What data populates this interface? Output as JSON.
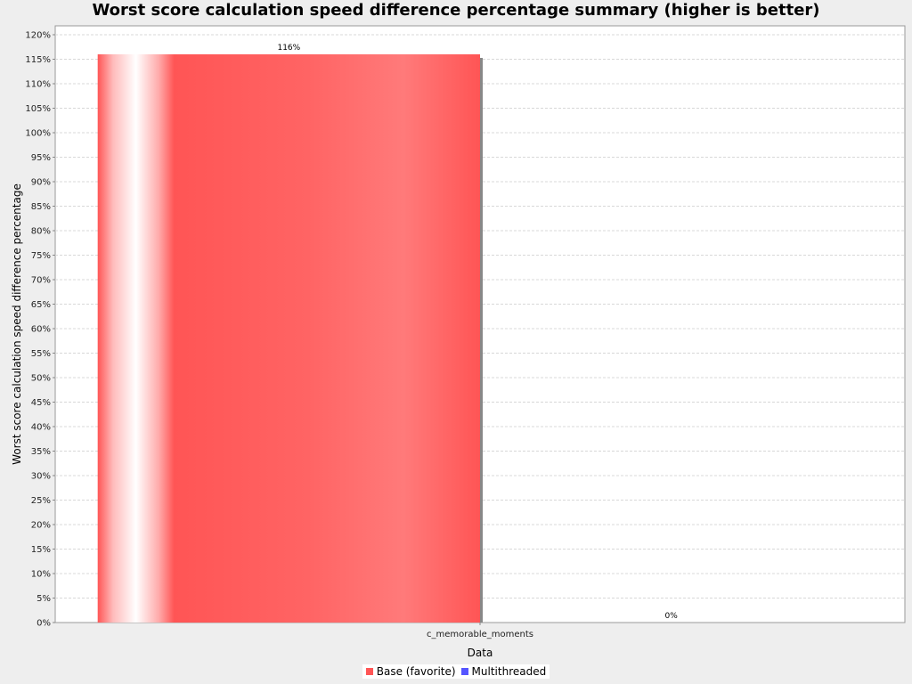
{
  "chart_data": {
    "type": "bar",
    "title": "Worst score calculation speed difference percentage summary (higher is better)",
    "xlabel": "Data",
    "ylabel": "Worst score calculation speed difference percentage",
    "categories": [
      "c_memorable_moments"
    ],
    "series": [
      {
        "name": "Base (favorite)",
        "values": [
          116
        ],
        "labels": [
          "116%"
        ],
        "color": "#ff5555"
      },
      {
        "name": "Multithreaded",
        "values": [
          0
        ],
        "labels": [
          "0%"
        ],
        "color": "#5555ff"
      }
    ],
    "ylim": [
      0,
      120
    ],
    "ytick_step": 5,
    "ytick_suffix": "%",
    "grid": true,
    "legend": "bottom-center"
  }
}
